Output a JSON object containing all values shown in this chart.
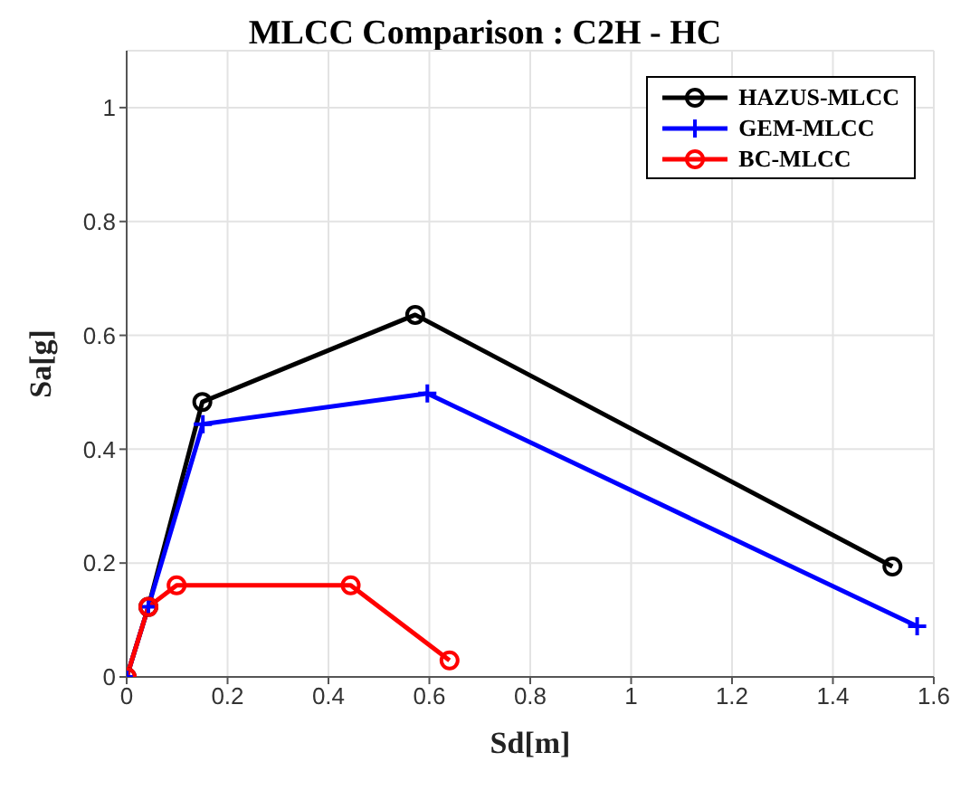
{
  "chart_data": {
    "type": "line",
    "title": "MLCC Comparison : C2H - HC",
    "xlabel": "Sd[m]",
    "ylabel": "Sa[g]",
    "xlim": [
      0,
      1.6
    ],
    "ylim": [
      0,
      1.1
    ],
    "xticks": [
      0,
      0.2,
      0.4,
      0.6,
      0.8,
      1,
      1.2,
      1.4,
      1.6
    ],
    "yticks": [
      0,
      0.2,
      0.4,
      0.6,
      0.8,
      1
    ],
    "grid": true,
    "legend": "top right",
    "line_style": "solid",
    "series": [
      {
        "name": "HAZUS-MLCC",
        "color": "#000000",
        "marker": "circle",
        "x": [
          0,
          0.043,
          0.15,
          0.572,
          1.518
        ],
        "values": [
          0,
          0.123,
          0.483,
          0.636,
          0.194
        ]
      },
      {
        "name": "GEM-MLCC",
        "color": "#0000ff",
        "marker": "cross",
        "x": [
          0,
          0.043,
          0.151,
          0.596,
          1.567
        ],
        "values": [
          0,
          0.123,
          0.444,
          0.498,
          0.089
        ]
      },
      {
        "name": "BC-MLCC",
        "color": "#ff0000",
        "marker": "circle",
        "x": [
          0,
          0.043,
          0.099,
          0.444,
          0.64
        ],
        "values": [
          0,
          0.123,
          0.161,
          0.161,
          0.029
        ]
      }
    ]
  }
}
